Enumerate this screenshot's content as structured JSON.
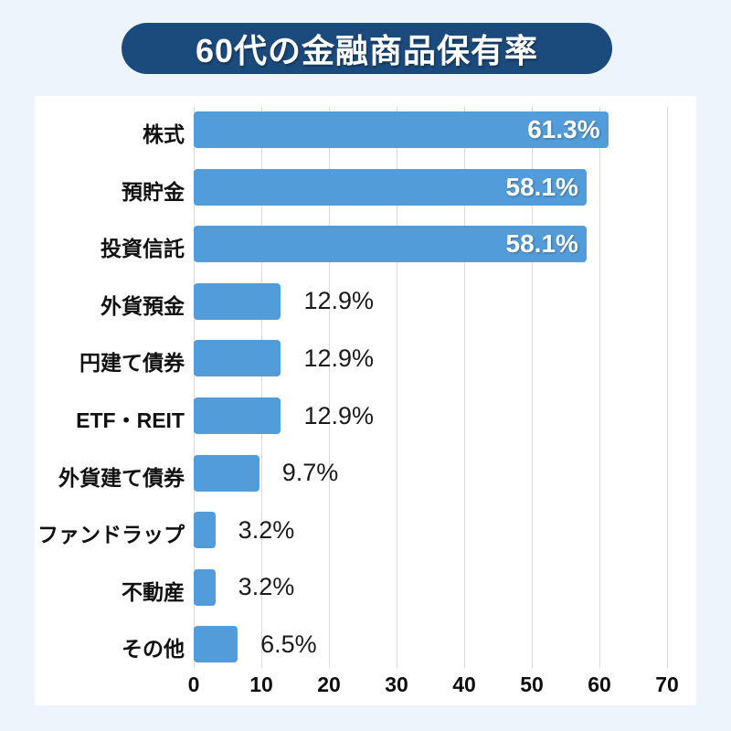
{
  "title": "60代の金融商品保有率",
  "colors": {
    "page_bg": "#edf4fc",
    "panel_bg": "#ffffff",
    "title_bg": "#1b4b7d",
    "title_text": "#ffffff",
    "bar": "#529cda",
    "gridline": "#d9d9d9",
    "category_text": "#111111",
    "axis_text": "#0d0d0d",
    "value_inside": "#ffffff",
    "value_outside": "#1a1a1a"
  },
  "chart_data": {
    "type": "bar",
    "orientation": "horizontal",
    "title": "60代の金融商品保有率",
    "categories": [
      "株式",
      "預貯金",
      "投資信託",
      "外貨預金",
      "円建て債券",
      "ETF・REIT",
      "外貨建て債券",
      "ファンドラップ",
      "不動産",
      "その他"
    ],
    "values": [
      61.3,
      58.1,
      58.1,
      12.9,
      12.9,
      12.9,
      9.7,
      3.2,
      3.2,
      6.5
    ],
    "value_labels": [
      "61.3%",
      "58.1%",
      "58.1%",
      "12.9%",
      "12.9%",
      "12.9%",
      "9.7%",
      "3.2%",
      "3.2%",
      "6.5%"
    ],
    "xlabel": "",
    "ylabel": "",
    "xlim": [
      0,
      70
    ],
    "x_ticks": [
      0,
      10,
      20,
      30,
      40,
      50,
      60,
      70
    ],
    "grid": true,
    "legend": false,
    "value_label_inside_threshold": 50
  }
}
